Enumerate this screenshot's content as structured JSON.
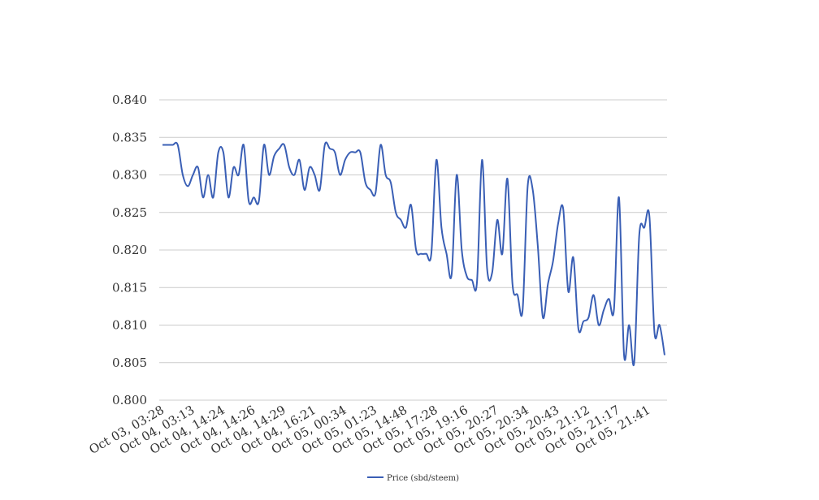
{
  "chart_data": {
    "type": "line",
    "title": "",
    "xlabel": "",
    "ylabel": "",
    "ylim": [
      0.8,
      0.84
    ],
    "y_ticks": [
      "0.840",
      "0.835",
      "0.830",
      "0.825",
      "0.820",
      "0.815",
      "0.810",
      "0.805",
      "0.800"
    ],
    "x_ticks": [
      "Oct 03, 03:28",
      "Oct 04, 03:13",
      "Oct 04, 14:24",
      "Oct 04, 14:26",
      "Oct 04, 14:29",
      "Oct 04, 16:21",
      "Oct 05, 00:34",
      "Oct 05, 01:23",
      "Oct 05, 14:48",
      "Oct 05, 17:28",
      "Oct 05, 19:16",
      "Oct 05, 20:27",
      "Oct 05, 20:34",
      "Oct 05, 20:43",
      "Oct 05, 21:12",
      "Oct 05, 21:17",
      "Oct 05, 21:41"
    ],
    "grid": true,
    "legend_position": "bottom",
    "series": [
      {
        "name": "Price (sbd/steem)",
        "color": "#3a5fb5",
        "values": [
          0.834,
          0.834,
          0.834,
          0.834,
          0.83,
          0.8285,
          0.83,
          0.831,
          0.827,
          0.83,
          0.827,
          0.833,
          0.833,
          0.827,
          0.831,
          0.83,
          0.834,
          0.8265,
          0.827,
          0.8265,
          0.834,
          0.83,
          0.8325,
          0.8335,
          0.834,
          0.831,
          0.83,
          0.832,
          0.828,
          0.831,
          0.83,
          0.828,
          0.834,
          0.8335,
          0.833,
          0.83,
          0.832,
          0.833,
          0.833,
          0.833,
          0.829,
          0.828,
          0.8276,
          0.834,
          0.83,
          0.829,
          0.825,
          0.824,
          0.823,
          0.826,
          0.82,
          0.8195,
          0.8195,
          0.8195,
          0.832,
          0.823,
          0.8195,
          0.8167,
          0.83,
          0.82,
          0.8165,
          0.816,
          0.8157,
          0.832,
          0.8175,
          0.817,
          0.824,
          0.8195,
          0.8295,
          0.8155,
          0.814,
          0.812,
          0.8285,
          0.828,
          0.8205,
          0.811,
          0.8155,
          0.8185,
          0.8235,
          0.8255,
          0.8145,
          0.819,
          0.8095,
          0.8105,
          0.811,
          0.814,
          0.81,
          0.812,
          0.8135,
          0.812,
          0.827,
          0.806,
          0.81,
          0.805,
          0.822,
          0.823,
          0.8245,
          0.809,
          0.81,
          0.806
        ]
      }
    ]
  }
}
